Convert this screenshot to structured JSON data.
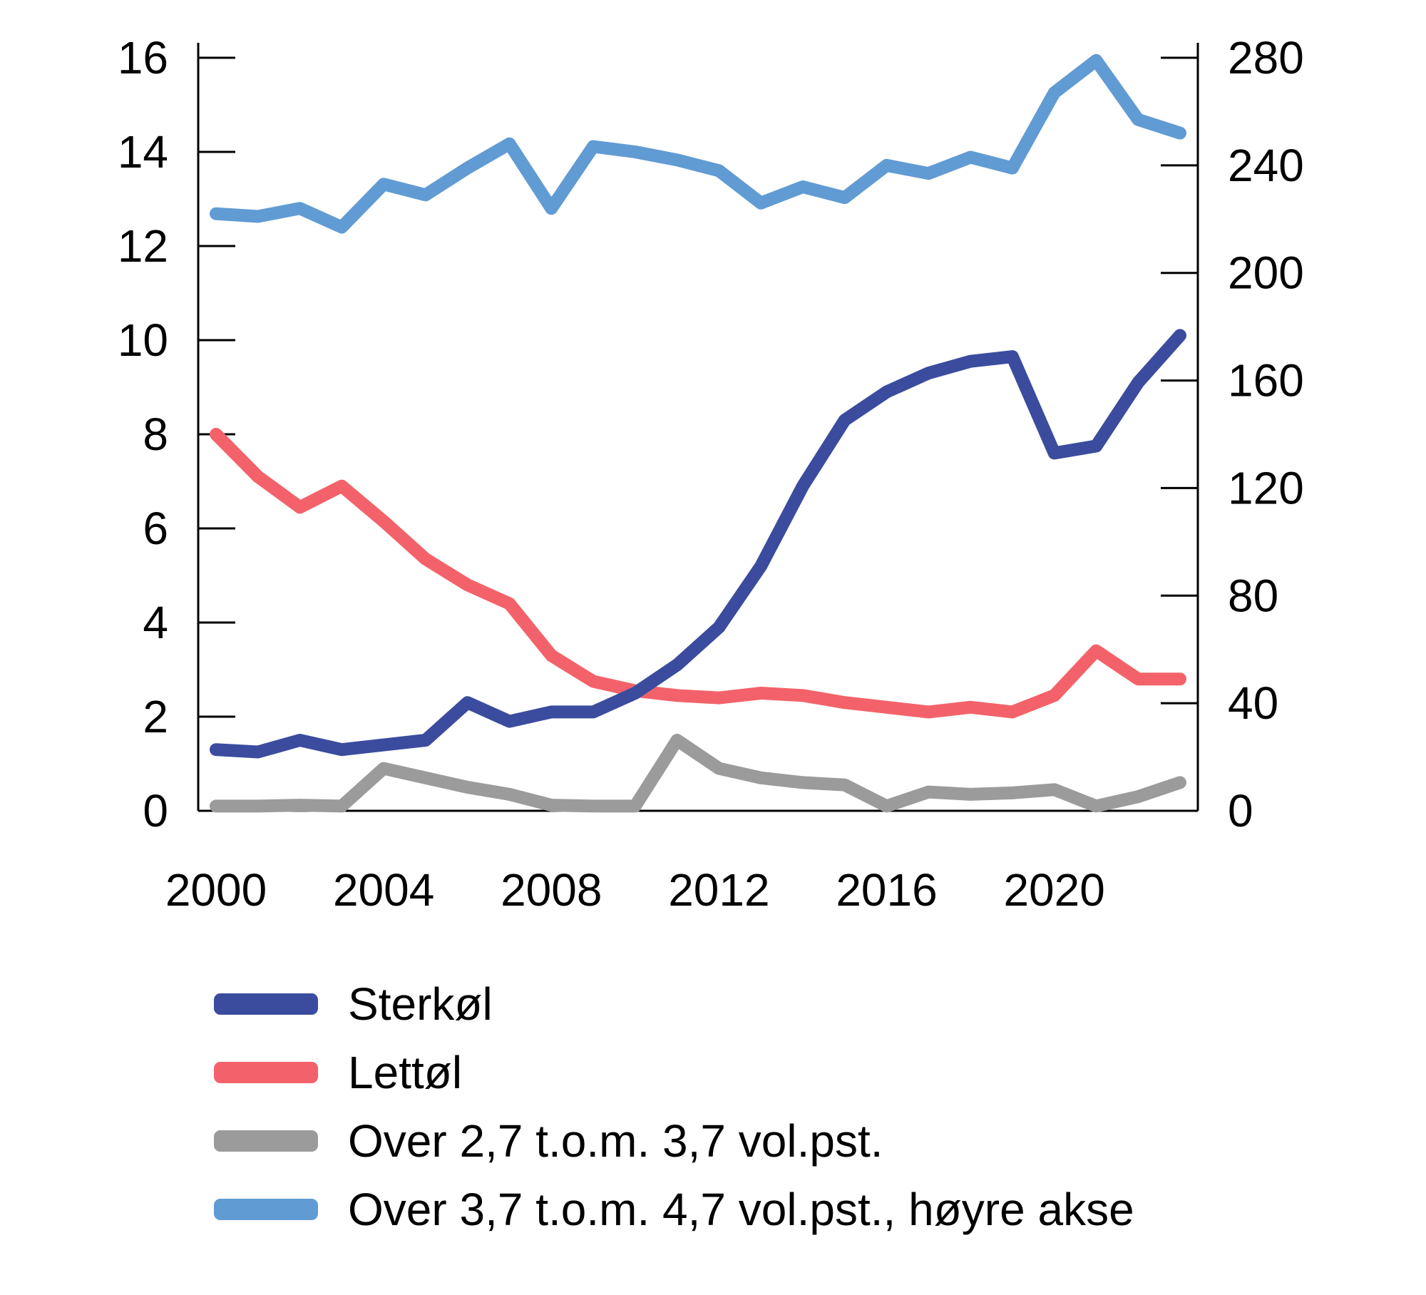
{
  "chart_data": {
    "type": "line",
    "title": "",
    "x": [
      2000,
      2001,
      2002,
      2003,
      2004,
      2005,
      2006,
      2007,
      2008,
      2009,
      2010,
      2011,
      2012,
      2013,
      2014,
      2015,
      2016,
      2017,
      2018,
      2019,
      2020,
      2021,
      2022,
      2023
    ],
    "x_axis": {
      "tick_labels": [
        "2000",
        "2004",
        "2008",
        "2012",
        "2016",
        "2020"
      ],
      "tick_years": [
        2000,
        2004,
        2008,
        2012,
        2016,
        2020
      ]
    },
    "left_axis": {
      "min": 0,
      "max": 16,
      "tick_step": 2,
      "tick_labels": [
        "16",
        "14",
        "12",
        "10",
        "8",
        "6",
        "4",
        "2",
        "0"
      ]
    },
    "right_axis": {
      "min": 0,
      "max": 280,
      "tick_step": 40,
      "tick_labels": [
        "280",
        "240",
        "200",
        "160",
        "120",
        "80",
        "40",
        "0"
      ]
    },
    "grid": false,
    "legend_position": "bottom-left",
    "series": [
      {
        "name": "Sterkøl",
        "axis": "left",
        "color": "#3B4C9E",
        "values": [
          1.3,
          1.25,
          1.5,
          1.3,
          1.4,
          1.5,
          2.3,
          1.9,
          2.1,
          2.1,
          2.5,
          3.1,
          3.9,
          5.2,
          6.9,
          8.3,
          8.9,
          9.3,
          9.55,
          9.65,
          7.6,
          7.75,
          9.1,
          10.1
        ]
      },
      {
        "name": "Lettøl",
        "axis": "left",
        "color": "#F3626A",
        "values": [
          8.0,
          7.1,
          6.45,
          6.9,
          6.15,
          5.35,
          4.8,
          4.4,
          3.3,
          2.75,
          2.55,
          2.45,
          2.4,
          2.5,
          2.45,
          2.3,
          2.2,
          2.1,
          2.2,
          2.1,
          2.45,
          3.4,
          2.8,
          2.8
        ]
      },
      {
        "name": "Over 2,7 t.o.m. 3,7 vol.pst.",
        "axis": "left",
        "color": "#9B9B9B",
        "values": [
          0.1,
          0.1,
          0.12,
          0.1,
          0.9,
          0.7,
          0.5,
          0.35,
          0.12,
          0.1,
          0.1,
          1.5,
          0.9,
          0.7,
          0.6,
          0.55,
          0.1,
          0.4,
          0.35,
          0.38,
          0.45,
          0.1,
          0.3,
          0.6
        ]
      },
      {
        "name": "Over 3,7 t.o.m. 4,7 vol.pst., høyre akse",
        "axis": "right",
        "color": "#619BD3",
        "values": [
          222,
          221,
          224,
          217,
          233,
          229,
          239,
          248,
          224,
          247,
          245,
          242,
          238,
          226,
          232,
          228,
          240,
          237,
          243,
          239,
          267,
          279,
          257,
          252
        ]
      }
    ]
  },
  "colors": {
    "axis": "#000000",
    "text": "#000000",
    "background": "#FFFFFF"
  }
}
